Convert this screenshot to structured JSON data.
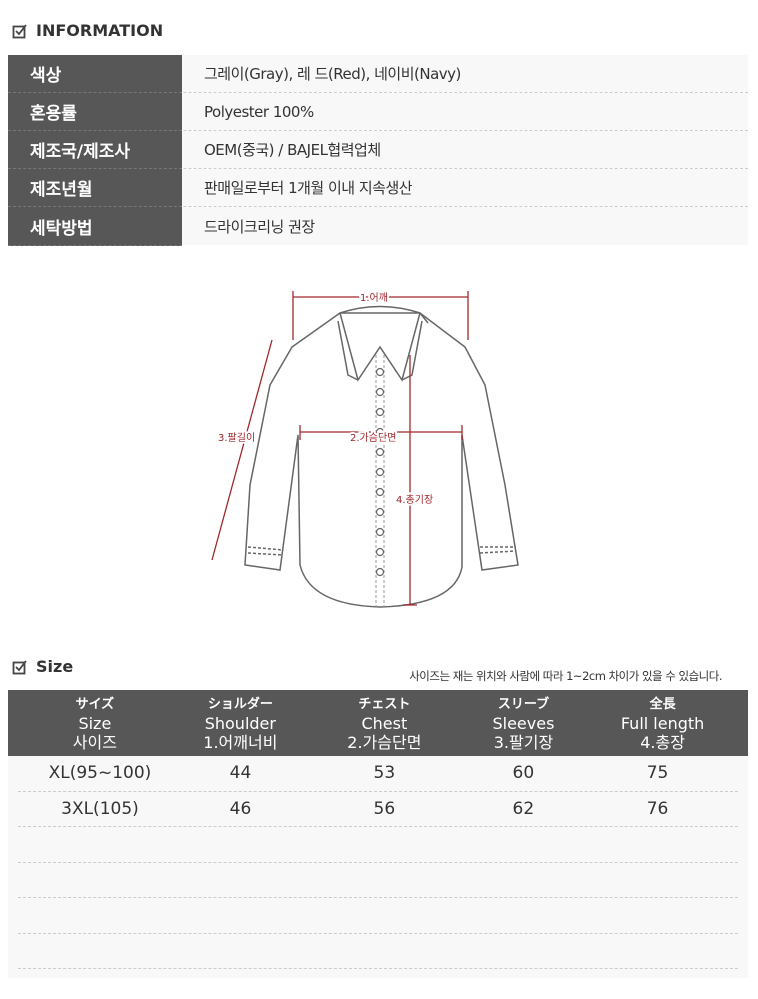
{
  "info_section": {
    "title": "INFORMATION",
    "icon": "checkbox-icon",
    "rows": [
      {
        "label": "색상",
        "value": "그레이(Gray), 레 드(Red), 네이비(Navy)"
      },
      {
        "label": "혼용률",
        "value": "Polyester 100%"
      },
      {
        "label": "제조국/제조사",
        "value": "OEM(중국) / BAJEL협력업체"
      },
      {
        "label": "제조년월",
        "value": "판매일로부터 1개월 이내 지속생산"
      },
      {
        "label": "세탁방법",
        "value": "드라이크리닝 권장"
      }
    ]
  },
  "diagram": {
    "labels": {
      "shoulder": "1.어깨",
      "chest": "2.가슴단면",
      "sleeve": "3.팔길이",
      "length": "4.총기장"
    },
    "measure_color": "#a0282c"
  },
  "size_section": {
    "title": "Size",
    "icon": "checkbox-icon",
    "note": "사이즈는 재는 위치와 사람에 따라 1~2cm 차이가 있을 수 있습니다.",
    "headers": [
      {
        "jp": "サイズ",
        "en": "Size",
        "kr": "사이즈"
      },
      {
        "jp": "ショルダー",
        "en": "Shoulder",
        "kr": "1.어깨너비"
      },
      {
        "jp": "チェスト",
        "en": "Chest",
        "kr": "2.가슴단면"
      },
      {
        "jp": "スリーブ",
        "en": "Sleeves",
        "kr": "3.팔기장"
      },
      {
        "jp": "全長",
        "en": "Full length",
        "kr": "4.총장"
      }
    ],
    "rows": [
      [
        "XL(95~100)",
        "44",
        "53",
        "60",
        "75"
      ],
      [
        "3XL(105)",
        "46",
        "56",
        "62",
        "76"
      ],
      [
        "",
        "",
        "",
        "",
        ""
      ],
      [
        "",
        "",
        "",
        "",
        ""
      ],
      [
        "",
        "",
        "",
        "",
        ""
      ],
      [
        "",
        "",
        "",
        "",
        ""
      ]
    ]
  }
}
